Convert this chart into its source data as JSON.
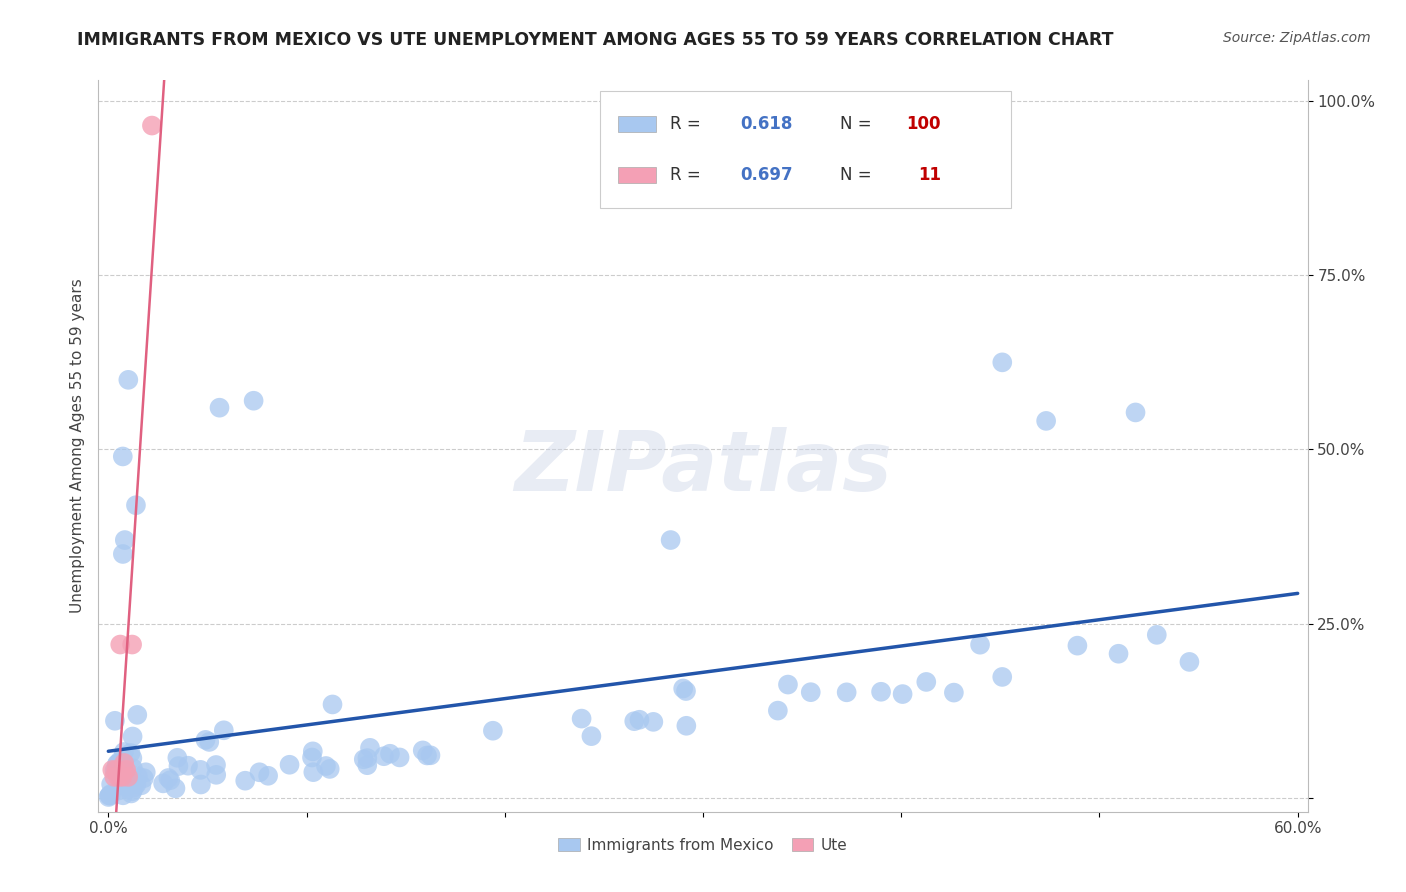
{
  "title": "IMMIGRANTS FROM MEXICO VS UTE UNEMPLOYMENT AMONG AGES 55 TO 59 YEARS CORRELATION CHART",
  "source": "Source: ZipAtlas.com",
  "ylabel": "Unemployment Among Ages 55 to 59 years",
  "watermark": "ZIPatlas",
  "xlim": [
    -0.005,
    0.605
  ],
  "ylim": [
    -0.02,
    1.03
  ],
  "xticks": [
    0.0,
    0.1,
    0.2,
    0.3,
    0.4,
    0.5,
    0.6
  ],
  "xticklabels": [
    "0.0%",
    "",
    "",
    "",
    "",
    "",
    "60.0%"
  ],
  "yticks": [
    0.0,
    0.25,
    0.5,
    0.75,
    1.0
  ],
  "yticklabels": [
    "",
    "25.0%",
    "50.0%",
    "75.0%",
    "100.0%"
  ],
  "blue_R": 0.618,
  "blue_N": 100,
  "pink_R": 0.697,
  "pink_N": 11,
  "blue_color": "#a8c8f0",
  "pink_color": "#f4a0b5",
  "blue_line_color": "#2255aa",
  "pink_line_color": "#e06080",
  "background_color": "#ffffff",
  "grid_color": "#cccccc",
  "legend_R_color": "#4472c4",
  "legend_N_color": "#c00000",
  "title_color": "#222222",
  "source_color": "#555555",
  "ylabel_color": "#444444"
}
